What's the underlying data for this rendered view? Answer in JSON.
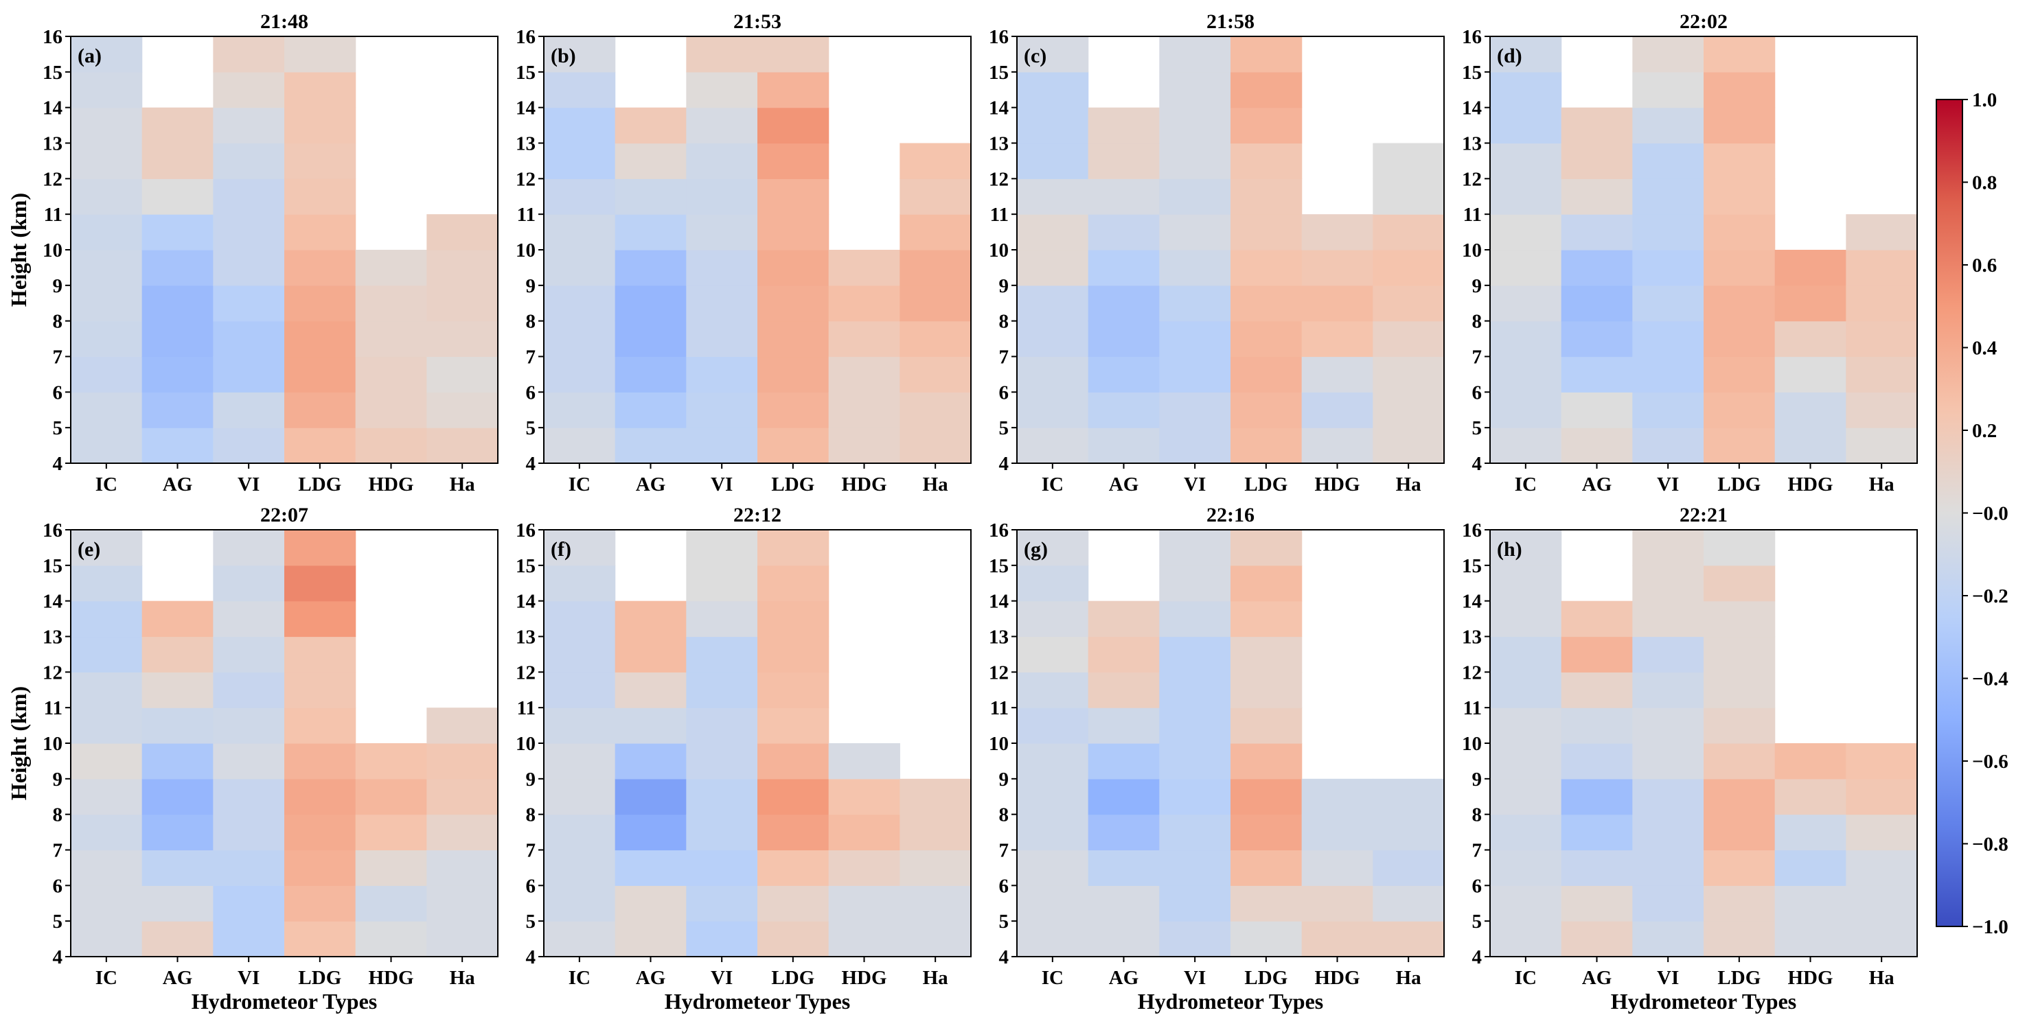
{
  "chart_data": {
    "type": "heatmap",
    "colormap": "coolwarm",
    "x_categories": [
      "IC",
      "AG",
      "VI",
      "LDG",
      "HDG",
      "Ha"
    ],
    "xlabel": "Hydrometeor Types",
    "ylabel": "Height (km)",
    "ylim": [
      4,
      16
    ],
    "yticks": [
      4,
      5,
      6,
      7,
      8,
      9,
      10,
      11,
      12,
      13,
      14,
      15,
      16
    ],
    "colorbar": {
      "vmin": -1.0,
      "vmax": 1.0,
      "ticks": [
        1.0,
        0.8,
        0.6,
        0.4,
        0.2,
        -0.0,
        -0.2,
        -0.4,
        -0.6,
        -0.8,
        -1.0
      ],
      "tick_labels": [
        "1.0",
        "0.8",
        "0.6",
        "0.4",
        "0.2",
        "−0.0",
        "−0.2",
        "−0.4",
        "−0.6",
        "−0.8",
        "−1.0"
      ]
    },
    "heights": [
      4.5,
      5.5,
      6.5,
      7.5,
      8.5,
      9.5,
      10.5,
      11.5,
      12.5,
      13.5,
      14.5,
      15.5
    ],
    "panels": [
      {
        "letter": "(a)",
        "title": "21:48",
        "values": [
          [
            -0.1,
            -0.1,
            -0.15,
            -0.12,
            -0.1,
            -0.1,
            -0.12,
            -0.08,
            -0.05,
            -0.05,
            -0.08,
            -0.1
          ],
          [
            -0.25,
            -0.35,
            -0.4,
            -0.42,
            -0.42,
            -0.35,
            -0.25,
            0.0,
            0.15,
            0.15,
            null,
            null
          ],
          [
            -0.15,
            -0.12,
            -0.3,
            -0.3,
            -0.25,
            -0.15,
            -0.15,
            -0.15,
            -0.1,
            -0.05,
            0.05,
            0.12
          ],
          [
            0.28,
            0.38,
            0.43,
            0.43,
            0.4,
            0.35,
            0.28,
            0.22,
            0.2,
            0.22,
            0.22,
            0.05
          ],
          [
            0.18,
            0.12,
            0.12,
            0.1,
            0.1,
            0.05,
            null,
            null,
            null,
            null,
            null,
            null
          ],
          [
            0.15,
            0.05,
            0.02,
            0.1,
            0.12,
            0.12,
            0.15,
            null,
            null,
            null,
            null,
            null
          ]
        ]
      },
      {
        "letter": "(b)",
        "title": "21:53",
        "values": [
          [
            -0.05,
            -0.1,
            -0.15,
            -0.15,
            -0.15,
            -0.1,
            -0.1,
            -0.15,
            -0.25,
            -0.25,
            -0.15,
            -0.05
          ],
          [
            -0.2,
            -0.3,
            -0.4,
            -0.45,
            -0.45,
            -0.38,
            -0.22,
            -0.12,
            0.05,
            0.2,
            null,
            null
          ],
          [
            -0.2,
            -0.2,
            -0.22,
            -0.15,
            -0.15,
            -0.15,
            -0.1,
            -0.12,
            -0.1,
            -0.05,
            0.02,
            0.15
          ],
          [
            0.3,
            0.35,
            0.38,
            0.38,
            0.38,
            0.4,
            0.35,
            0.35,
            0.45,
            0.52,
            0.35,
            0.15
          ],
          [
            0.1,
            0.1,
            0.1,
            0.2,
            0.28,
            0.2,
            null,
            null,
            null,
            null,
            null,
            null
          ],
          [
            0.15,
            0.15,
            0.22,
            0.28,
            0.38,
            0.38,
            0.3,
            0.2,
            0.25,
            null,
            null,
            null
          ]
        ]
      },
      {
        "letter": "(c)",
        "title": "21:58",
        "values": [
          [
            -0.05,
            -0.1,
            -0.1,
            -0.15,
            -0.15,
            0.05,
            0.05,
            -0.05,
            -0.2,
            -0.2,
            -0.2,
            -0.05
          ],
          [
            -0.1,
            -0.2,
            -0.3,
            -0.35,
            -0.35,
            -0.25,
            -0.15,
            -0.05,
            0.1,
            0.1,
            null,
            null
          ],
          [
            -0.15,
            -0.15,
            -0.25,
            -0.25,
            -0.2,
            -0.1,
            -0.05,
            -0.1,
            -0.05,
            -0.05,
            -0.05,
            -0.05
          ],
          [
            0.3,
            0.32,
            0.35,
            0.33,
            0.3,
            0.25,
            0.2,
            0.2,
            0.22,
            0.35,
            0.4,
            0.3
          ],
          [
            -0.05,
            -0.15,
            -0.05,
            0.25,
            0.3,
            0.22,
            0.12,
            null,
            null,
            null,
            null,
            null
          ],
          [
            0.05,
            0.05,
            0.05,
            0.12,
            0.22,
            0.25,
            0.2,
            0.0,
            0.0,
            null,
            null,
            null
          ]
        ]
      },
      {
        "letter": "(d)",
        "title": "22:02",
        "values": [
          [
            -0.05,
            -0.1,
            -0.1,
            -0.1,
            -0.05,
            0.0,
            0.0,
            -0.08,
            -0.08,
            -0.2,
            -0.2,
            -0.1
          ],
          [
            0.05,
            0.0,
            -0.25,
            -0.35,
            -0.4,
            -0.35,
            -0.15,
            0.05,
            0.15,
            0.15,
            null,
            null
          ],
          [
            -0.15,
            -0.2,
            -0.25,
            -0.25,
            -0.2,
            -0.25,
            -0.2,
            -0.2,
            -0.2,
            -0.1,
            0.0,
            0.05
          ],
          [
            0.28,
            0.3,
            0.33,
            0.35,
            0.35,
            0.3,
            0.28,
            0.25,
            0.25,
            0.35,
            0.35,
            0.25
          ],
          [
            -0.1,
            -0.1,
            0.0,
            0.15,
            0.4,
            0.42,
            null,
            null,
            null,
            null,
            null,
            null
          ],
          [
            0.02,
            0.1,
            0.15,
            0.2,
            0.22,
            0.22,
            0.1,
            null,
            null,
            null,
            null,
            null
          ]
        ]
      },
      {
        "letter": "(e)",
        "title": "22:07",
        "values": [
          [
            -0.05,
            -0.05,
            -0.05,
            -0.1,
            -0.05,
            0.02,
            -0.1,
            -0.1,
            -0.2,
            -0.2,
            -0.12,
            -0.05
          ],
          [
            0.12,
            -0.05,
            -0.2,
            -0.4,
            -0.45,
            -0.32,
            -0.12,
            0.05,
            0.18,
            0.3,
            null,
            null
          ],
          [
            -0.25,
            -0.25,
            -0.2,
            -0.15,
            -0.15,
            -0.05,
            -0.1,
            -0.15,
            -0.1,
            -0.05,
            -0.1,
            -0.05
          ],
          [
            0.25,
            0.32,
            0.37,
            0.4,
            0.42,
            0.35,
            0.25,
            0.22,
            0.22,
            0.5,
            0.58,
            0.45
          ],
          [
            -0.02,
            -0.1,
            0.05,
            0.25,
            0.33,
            0.25,
            null,
            null,
            null,
            null,
            null,
            null
          ],
          [
            -0.05,
            -0.05,
            -0.05,
            0.1,
            0.2,
            0.22,
            0.1,
            null,
            null,
            null,
            null,
            null
          ]
        ]
      },
      {
        "letter": "(f)",
        "title": "22:12",
        "values": [
          [
            -0.05,
            -0.1,
            -0.1,
            -0.1,
            -0.05,
            -0.05,
            -0.1,
            -0.15,
            -0.15,
            -0.15,
            -0.1,
            -0.05
          ],
          [
            0.05,
            0.05,
            -0.25,
            -0.52,
            -0.58,
            -0.35,
            -0.1,
            0.08,
            0.3,
            0.3,
            null,
            null
          ],
          [
            -0.25,
            -0.2,
            -0.25,
            -0.2,
            -0.2,
            -0.15,
            -0.15,
            -0.2,
            -0.2,
            -0.05,
            0.0,
            0.0
          ],
          [
            0.15,
            0.1,
            0.25,
            0.45,
            0.5,
            0.35,
            0.25,
            0.28,
            0.3,
            0.3,
            0.28,
            0.22
          ],
          [
            -0.05,
            -0.05,
            0.12,
            0.3,
            0.25,
            -0.05,
            null,
            null,
            null,
            null,
            null,
            null
          ],
          [
            -0.05,
            -0.05,
            0.05,
            0.15,
            0.15,
            null,
            null,
            null,
            null,
            null,
            null,
            null
          ]
        ]
      },
      {
        "letter": "(g)",
        "title": "22:16",
        "values": [
          [
            -0.05,
            -0.05,
            -0.05,
            -0.1,
            -0.1,
            -0.1,
            -0.15,
            -0.1,
            0.0,
            -0.05,
            -0.1,
            -0.05
          ],
          [
            -0.05,
            -0.05,
            -0.2,
            -0.38,
            -0.48,
            -0.3,
            -0.1,
            0.15,
            0.2,
            0.15,
            null,
            null
          ],
          [
            -0.15,
            -0.2,
            -0.2,
            -0.2,
            -0.25,
            -0.22,
            -0.22,
            -0.22,
            -0.22,
            -0.1,
            -0.05,
            -0.05
          ],
          [
            -0.02,
            0.1,
            0.3,
            0.42,
            0.45,
            0.32,
            0.15,
            0.1,
            0.1,
            0.25,
            0.3,
            0.15
          ],
          [
            0.15,
            0.1,
            -0.05,
            -0.1,
            -0.1,
            null,
            null,
            null,
            null,
            null,
            null,
            null
          ],
          [
            0.15,
            -0.05,
            -0.15,
            -0.1,
            -0.1,
            null,
            null,
            null,
            null,
            null,
            null,
            null
          ]
        ]
      },
      {
        "letter": "(h)",
        "title": "22:21",
        "values": [
          [
            -0.05,
            -0.05,
            -0.08,
            -0.1,
            -0.05,
            -0.05,
            -0.05,
            -0.12,
            -0.12,
            -0.05,
            -0.05,
            -0.05
          ],
          [
            0.12,
            0.05,
            -0.15,
            -0.3,
            -0.4,
            -0.15,
            -0.08,
            0.1,
            0.35,
            0.22,
            null,
            null
          ],
          [
            -0.1,
            -0.15,
            -0.15,
            -0.15,
            -0.15,
            -0.05,
            -0.05,
            -0.1,
            -0.15,
            0.05,
            0.05,
            0.05
          ],
          [
            0.1,
            0.1,
            0.25,
            0.35,
            0.35,
            0.2,
            0.1,
            0.05,
            0.05,
            0.05,
            0.15,
            0.0
          ],
          [
            -0.05,
            -0.05,
            -0.2,
            -0.1,
            0.15,
            0.3,
            null,
            null,
            null,
            null,
            null,
            null
          ],
          [
            -0.05,
            -0.05,
            -0.05,
            0.05,
            0.22,
            0.25,
            null,
            null,
            null,
            null,
            null,
            null
          ]
        ]
      }
    ]
  }
}
